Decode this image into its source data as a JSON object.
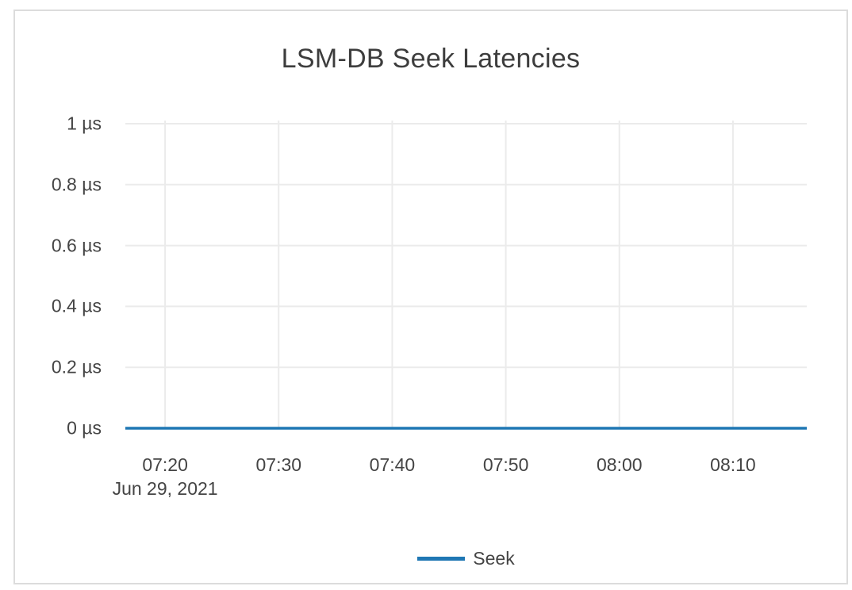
{
  "chart_data": {
    "type": "line",
    "title": "LSM-DB Seek Latencies",
    "x_axis": {
      "tick_labels": [
        "07:20",
        "07:30",
        "07:40",
        "07:50",
        "08:00",
        "08:10"
      ],
      "tick_minutes": [
        440,
        450,
        460,
        470,
        480,
        490
      ],
      "range_minutes": [
        436.5,
        496.5
      ],
      "date_label": "Jun 29, 2021"
    },
    "y_axis": {
      "tick_labels": [
        "0 µs",
        "0.2 µs",
        "0.4 µs",
        "0.6 µs",
        "0.8 µs",
        "1 µs"
      ],
      "tick_values": [
        0,
        0.2,
        0.4,
        0.6,
        0.8,
        1
      ],
      "range": [
        0,
        1
      ],
      "unit": "µs"
    },
    "series": [
      {
        "name": "Seek",
        "color": "#1f77b4",
        "value_us": 0
      }
    ],
    "legend": {
      "position": "bottom-center",
      "items": [
        {
          "label": "Seek",
          "color": "#1f77b4"
        }
      ]
    },
    "grid": {
      "visible": true,
      "color": "#ebebeb"
    },
    "colors": {
      "title_text": "#3d3d3d",
      "tick_text": "#444444",
      "card_border": "#dcdcdc",
      "background": "#ffffff"
    }
  }
}
